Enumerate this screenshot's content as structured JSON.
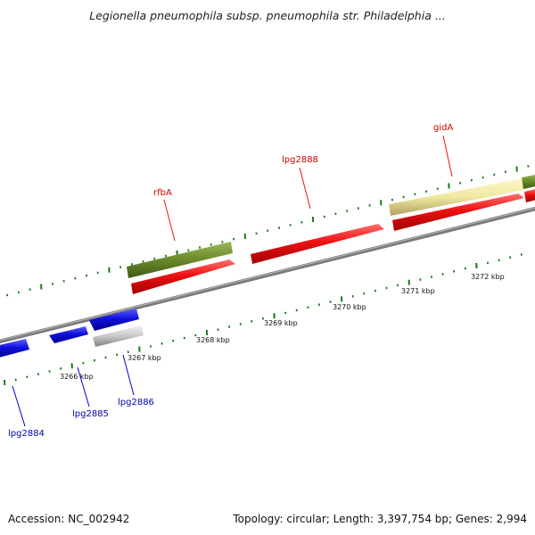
{
  "title": "Legionella pneumophila subsp. pneumophila str. Philadelphia ...",
  "footer": {
    "accession": "Accession: NC_002942",
    "stats": "Topology: circular; Length: 3,397,754 bp; Genes: 2,994"
  },
  "colors": {
    "backbone": "#808080",
    "tick": "#1a7a1a",
    "forward_gene": "#ee1111",
    "reverse_gene": "#1010dd",
    "rna_like": "#6e8e2e",
    "pseudo_pale": "#f0e8a0",
    "grey_gene": "#c8c8c8",
    "label_red": "#cc0000",
    "label_blue": "#0000aa"
  },
  "tick_labels": [
    "3266 kbp",
    "3267 kbp",
    "3268 kbp",
    "3269 kbp",
    "3270 kbp",
    "3271 kbp",
    "3272 kbp"
  ],
  "gene_labels": {
    "top": [
      "rfbA",
      "lpg2888",
      "gidA"
    ],
    "bottom": [
      "lpg2884",
      "lpg2885",
      "lpg2886"
    ]
  }
}
